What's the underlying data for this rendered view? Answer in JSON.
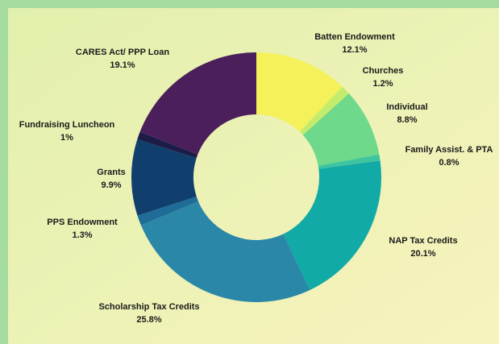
{
  "chart_data": {
    "type": "donut",
    "categories": [
      "Batten Endowment",
      "Churches",
      "Individual",
      "Family Assist. & PTA",
      "NAP Tax Credits",
      "Scholarship Tax Credits",
      "PPS Endowment",
      "Grants",
      "Fundraising Luncheon",
      "CARES Act/ PPP Loan"
    ],
    "values": [
      12.1,
      1.2,
      8.8,
      0.8,
      20.1,
      25.8,
      1.3,
      9.9,
      1,
      19.1
    ],
    "value_labels": [
      "12.1%",
      "1.2%",
      "8.8%",
      "0.8%",
      "20.1%",
      "25.8%",
      "1.3%",
      "9.9%",
      "1%",
      "19.1%"
    ],
    "colors": [
      "#f4f15a",
      "#c4ec6c",
      "#6ed98a",
      "#3ec59f",
      "#12aaa6",
      "#2a87a7",
      "#1e6c97",
      "#113f6d",
      "#1c1c48",
      "#4a1f5c"
    ]
  }
}
